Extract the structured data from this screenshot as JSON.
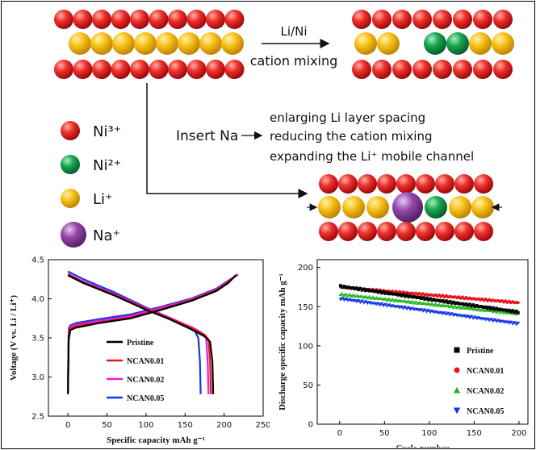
{
  "colors": {
    "ni3": "#e8141b",
    "ni2": "#129a47",
    "li": "#f6b900",
    "na": "#8d3f9e",
    "pristine": "#000000",
    "ncan001": "#e8141b",
    "ncan002": "#e81ae0",
    "ncan002_cycle": "#22b91f",
    "ncan005": "#1336e6"
  },
  "schematic": {
    "cation_mixing_top": "Li/Ni",
    "cation_mixing_bottom": "cation mixing",
    "insert_na": "Insert Na",
    "effects": [
      "enlarging Li layer spacing",
      "reducing the cation mixing",
      "expanding the Li⁺ mobile channel"
    ]
  },
  "legend": {
    "items": [
      {
        "label": "Ni³⁺",
        "color_key": "ni3"
      },
      {
        "label": "Ni²⁺",
        "color_key": "ni2"
      },
      {
        "label": "Li⁺",
        "color_key": "li"
      },
      {
        "label": "Na⁺",
        "color_key": "na"
      }
    ]
  },
  "chart_data": [
    {
      "type": "line",
      "xlabel": "Specific capacity mAh g⁻¹",
      "ylabel": "Voltage (V vs. Li / Li⁺)",
      "xlim": [
        -25,
        250
      ],
      "ylim": [
        2.5,
        4.5
      ],
      "xticks": [
        "0",
        "50",
        "100",
        "150",
        "200",
        "250"
      ],
      "yticks": [
        "2.5",
        "3.0",
        "3.5",
        "4.0",
        "4.5"
      ],
      "legend_position": "center-bottom",
      "series": [
        {
          "name": "Pristine",
          "color_key": "pristine",
          "charge": [
            [
              0,
              2.78
            ],
            [
              1,
              3.48
            ],
            [
              3,
              3.6
            ],
            [
              10,
              3.63
            ],
            [
              40,
              3.69
            ],
            [
              80,
              3.75
            ],
            [
              120,
              3.86
            ],
            [
              160,
              3.98
            ],
            [
              190,
              4.1
            ],
            [
              205,
              4.2
            ],
            [
              215,
              4.3
            ]
          ],
          "discharge": [
            [
              0,
              4.3
            ],
            [
              20,
              4.2
            ],
            [
              60,
              4.04
            ],
            [
              100,
              3.86
            ],
            [
              130,
              3.74
            ],
            [
              160,
              3.6
            ],
            [
              175,
              3.52
            ],
            [
              182,
              3.45
            ],
            [
              185,
              3.2
            ],
            [
              186,
              2.78
            ]
          ]
        },
        {
          "name": "NCAN0.01",
          "color_key": "ncan001",
          "charge": [
            [
              0,
              2.8
            ],
            [
              1,
              3.55
            ],
            [
              3,
              3.62
            ],
            [
              10,
              3.65
            ],
            [
              40,
              3.7
            ],
            [
              80,
              3.76
            ],
            [
              120,
              3.87
            ],
            [
              160,
              3.99
            ],
            [
              190,
              4.11
            ],
            [
              205,
              4.21
            ],
            [
              216,
              4.31
            ]
          ],
          "discharge": [
            [
              0,
              4.31
            ],
            [
              20,
              4.21
            ],
            [
              60,
              4.05
            ],
            [
              100,
              3.87
            ],
            [
              130,
              3.75
            ],
            [
              160,
              3.62
            ],
            [
              175,
              3.54
            ],
            [
              180,
              3.48
            ],
            [
              182,
              3.2
            ],
            [
              183,
              2.78
            ]
          ]
        },
        {
          "name": "NCAN0.02",
          "color_key": "ncan002",
          "charge": [
            [
              0,
              2.8
            ],
            [
              1,
              3.6
            ],
            [
              3,
              3.64
            ],
            [
              10,
              3.67
            ],
            [
              40,
              3.72
            ],
            [
              80,
              3.78
            ],
            [
              120,
              3.89
            ],
            [
              160,
              4.0
            ],
            [
              190,
              4.12
            ],
            [
              205,
              4.22
            ],
            [
              217,
              4.31
            ]
          ],
          "discharge": [
            [
              0,
              4.32
            ],
            [
              20,
              4.22
            ],
            [
              60,
              4.06
            ],
            [
              100,
              3.88
            ],
            [
              130,
              3.76
            ],
            [
              160,
              3.63
            ],
            [
              172,
              3.56
            ],
            [
              177,
              3.5
            ],
            [
              179,
              3.2
            ],
            [
              180,
              2.78
            ]
          ]
        },
        {
          "name": "NCAN0.05",
          "color_key": "ncan005",
          "charge": [
            [
              0,
              2.95
            ],
            [
              1,
              3.62
            ],
            [
              3,
              3.66
            ],
            [
              10,
              3.69
            ],
            [
              40,
              3.74
            ],
            [
              80,
              3.8
            ],
            [
              120,
              3.9
            ],
            [
              160,
              4.01
            ],
            [
              190,
              4.13
            ],
            [
              205,
              4.23
            ],
            [
              218,
              4.31
            ]
          ],
          "discharge": [
            [
              0,
              4.35
            ],
            [
              20,
              4.25
            ],
            [
              60,
              4.08
            ],
            [
              100,
              3.89
            ],
            [
              130,
              3.76
            ],
            [
              150,
              3.66
            ],
            [
              163,
              3.58
            ],
            [
              167,
              3.5
            ],
            [
              169,
              3.2
            ],
            [
              170,
              2.78
            ]
          ]
        }
      ]
    },
    {
      "type": "scatter",
      "xlabel": "Cycle number",
      "ylabel": "Discharge specific capacity mAh g⁻¹",
      "xlim": [
        -25,
        210
      ],
      "ylim": [
        0,
        210
      ],
      "xticks": [
        "0",
        "50",
        "100",
        "150",
        "200"
      ],
      "yticks": [
        "0",
        "50",
        "100",
        "150",
        "200"
      ],
      "legend_position": "bottom-right",
      "series": [
        {
          "name": "Pristine",
          "marker": "square",
          "color_key": "pristine",
          "start": 176,
          "end": 143
        },
        {
          "name": "NCAN0.01",
          "marker": "circle",
          "color_key": "ncan001",
          "start": 175,
          "end": 155
        },
        {
          "name": "NCAN0.02",
          "marker": "triangle-up",
          "color_key": "ncan002_cycle",
          "start": 166,
          "end": 141
        },
        {
          "name": "NCAN0.05",
          "marker": "triangle-down",
          "color_key": "ncan005",
          "start": 160,
          "end": 128
        }
      ]
    }
  ]
}
